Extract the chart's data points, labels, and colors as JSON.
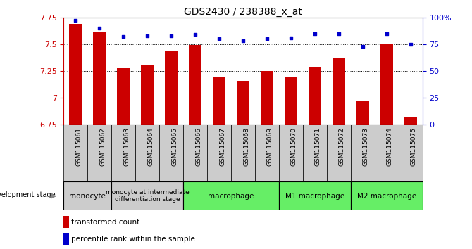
{
  "title": "GDS2430 / 238388_x_at",
  "samples": [
    "GSM115061",
    "GSM115062",
    "GSM115063",
    "GSM115064",
    "GSM115065",
    "GSM115066",
    "GSM115067",
    "GSM115068",
    "GSM115069",
    "GSM115070",
    "GSM115071",
    "GSM115072",
    "GSM115073",
    "GSM115074",
    "GSM115075"
  ],
  "bar_values": [
    7.69,
    7.62,
    7.28,
    7.31,
    7.43,
    7.49,
    7.19,
    7.16,
    7.25,
    7.19,
    7.29,
    7.37,
    6.97,
    7.5,
    6.82
  ],
  "percentile_values": [
    97,
    90,
    82,
    83,
    83,
    84,
    80,
    78,
    80,
    81,
    85,
    85,
    73,
    85,
    75
  ],
  "bar_color": "#cc0000",
  "percentile_color": "#0000cc",
  "ylim_left": [
    6.75,
    7.75
  ],
  "ylim_right": [
    0,
    100
  ],
  "yticks_left": [
    6.75,
    7.0,
    7.25,
    7.5,
    7.75
  ],
  "ytick_labels_left": [
    "6.75",
    "7",
    "7.25",
    "7.5",
    "7.75"
  ],
  "yticks_right": [
    0,
    25,
    50,
    75,
    100
  ],
  "ytick_labels_right": [
    "0",
    "25",
    "50",
    "75",
    "100%"
  ],
  "groups": [
    {
      "label": "monocyte",
      "start": 0,
      "end": 2,
      "color": "#cccccc"
    },
    {
      "label": "monocyte at intermediate\ndifferentiation stage",
      "start": 2,
      "end": 5,
      "color": "#cccccc"
    },
    {
      "label": "macrophage",
      "start": 5,
      "end": 9,
      "color": "#66ee66"
    },
    {
      "label": "M1 macrophage",
      "start": 9,
      "end": 12,
      "color": "#66ee66"
    },
    {
      "label": "M2 macrophage",
      "start": 12,
      "end": 15,
      "color": "#66ee66"
    }
  ],
  "legend_bar": "transformed count",
  "legend_pct": "percentile rank within the sample",
  "background_color": "#ffffff",
  "left_axis_color": "#cc0000",
  "right_axis_color": "#0000cc",
  "tick_bg_color": "#cccccc",
  "bar_width": 0.55
}
